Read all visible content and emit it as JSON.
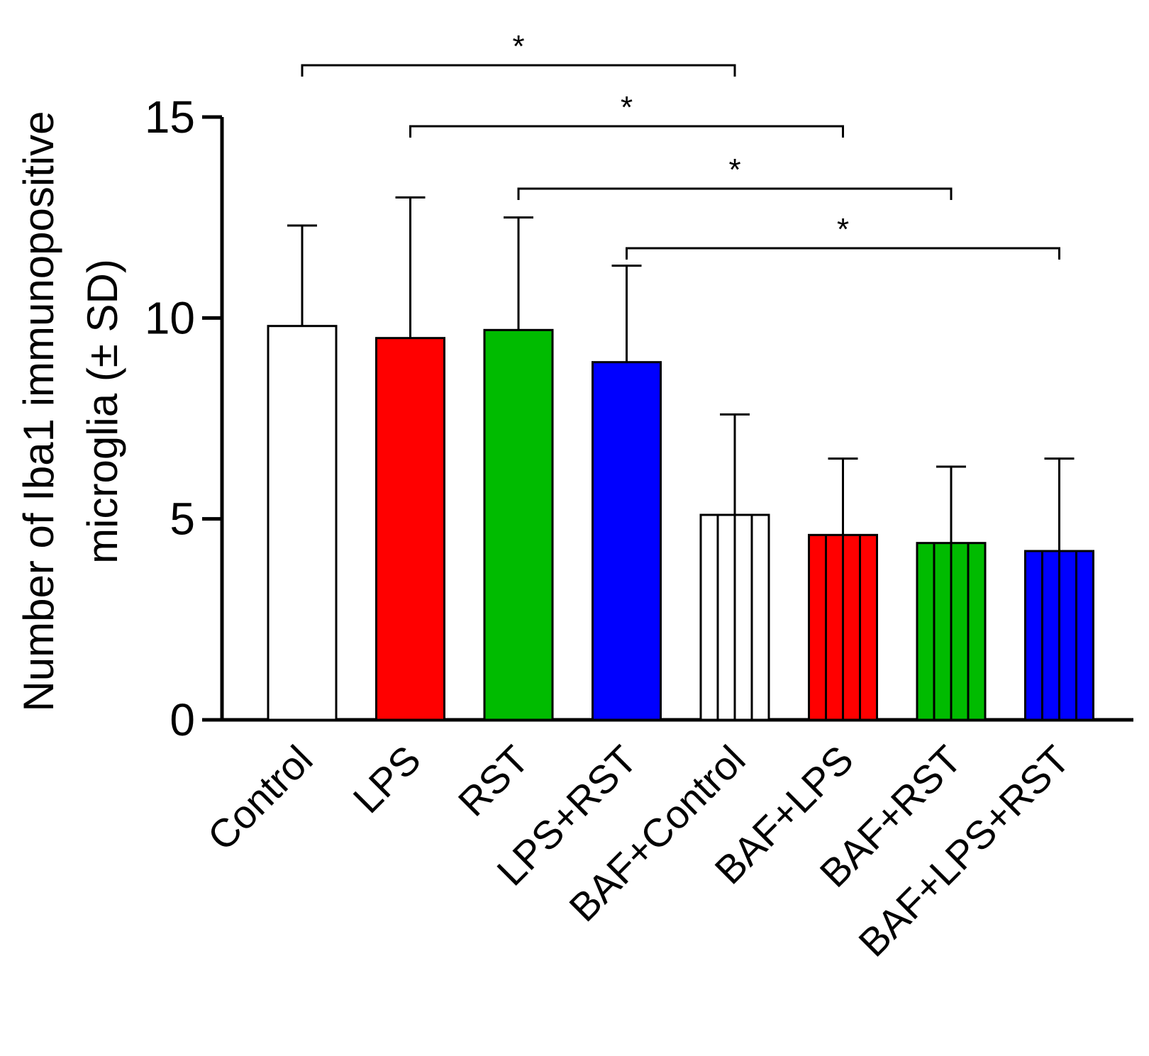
{
  "chart_data": {
    "type": "bar",
    "title": "",
    "xlabel": "",
    "ylabel_lines": [
      "Number of Iba1 immunopositive",
      "microglia (± SD)"
    ],
    "ylim": [
      0,
      15
    ],
    "yticks": [
      0,
      5,
      10,
      15
    ],
    "categories": [
      "Control",
      "LPS",
      "RST",
      "LPS+RST",
      "BAF+Control",
      "BAF+LPS",
      "BAF+RST",
      "BAF+LPS+RST"
    ],
    "values": [
      9.8,
      9.5,
      9.7,
      8.9,
      5.1,
      4.6,
      4.4,
      4.2
    ],
    "errors": [
      2.5,
      3.5,
      2.8,
      2.4,
      2.5,
      1.9,
      1.9,
      2.3
    ],
    "colors": [
      "#ffffff",
      "#ff0000",
      "#00bb00",
      "#0000ff",
      "#ffffff",
      "#ff0000",
      "#00bb00",
      "#0000ff"
    ],
    "striped": [
      false,
      false,
      false,
      false,
      true,
      true,
      true,
      true
    ],
    "significance": [
      {
        "from": "Control",
        "to": "BAF+Control",
        "label": "*"
      },
      {
        "from": "LPS",
        "to": "BAF+LPS",
        "label": "*"
      },
      {
        "from": "RST",
        "to": "BAF+RST",
        "label": "*"
      },
      {
        "from": "LPS+RST",
        "to": "BAF+LPS+RST",
        "label": "*"
      }
    ]
  }
}
